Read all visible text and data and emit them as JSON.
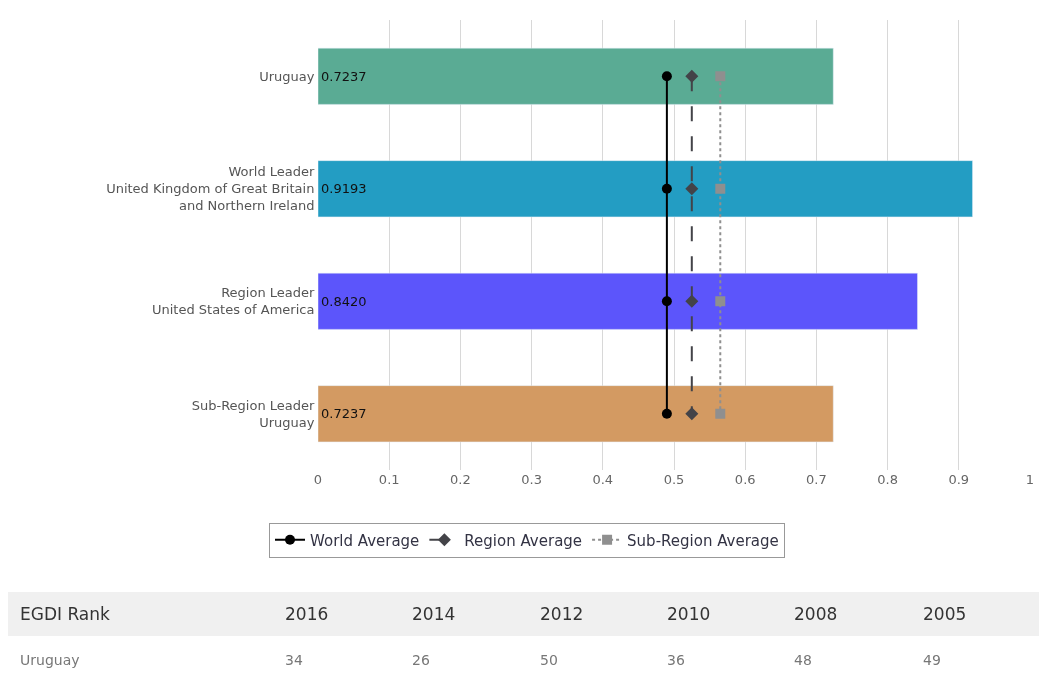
{
  "chart_data": {
    "type": "bar",
    "orientation": "horizontal",
    "categories": [
      "Uruguay",
      "World Leader\nUnited Kingdom of Great Britain\nand Northern Ireland",
      "Region Leader\nUnited States of America",
      "Sub-Region Leader\nUruguay"
    ],
    "series": [
      {
        "colors": [
          "#5aab94",
          "#239dc3",
          "#5c55fb",
          "#d39a62"
        ],
        "values": [
          0.7237,
          0.9193,
          0.842,
          0.7237
        ],
        "value_labels": [
          "0.7237",
          "0.9193",
          "0.8420",
          "0.7237"
        ]
      },
      {
        "type": "line",
        "name": "World Average",
        "color": "#000000",
        "marker": "circle",
        "line_style": "solid",
        "values": [
          0.49,
          0.49,
          0.49,
          0.49
        ]
      },
      {
        "type": "line",
        "name": "Region Average",
        "color": "#434348",
        "marker": "diamond",
        "line_style": "dashed",
        "values": [
          0.525,
          0.525,
          0.525,
          0.525
        ]
      },
      {
        "type": "line",
        "name": "Sub-Region Average",
        "color": "#8f8f8f",
        "marker": "square",
        "line_style": "dotted",
        "values": [
          0.565,
          0.565,
          0.565,
          0.565
        ]
      }
    ],
    "xlim": [
      0,
      1
    ],
    "xticks": [
      0,
      0.1,
      0.2,
      0.3,
      0.4,
      0.5,
      0.6,
      0.7,
      0.8,
      0.9,
      1
    ],
    "grid": "x",
    "legend": "bottom",
    "annotations": [
      "EGDI Rank",
      "2016",
      "2014",
      "2012",
      "2010",
      "2008",
      "2005",
      "Uruguay",
      "34",
      "26",
      "50",
      "36",
      "48",
      "49"
    ]
  }
}
